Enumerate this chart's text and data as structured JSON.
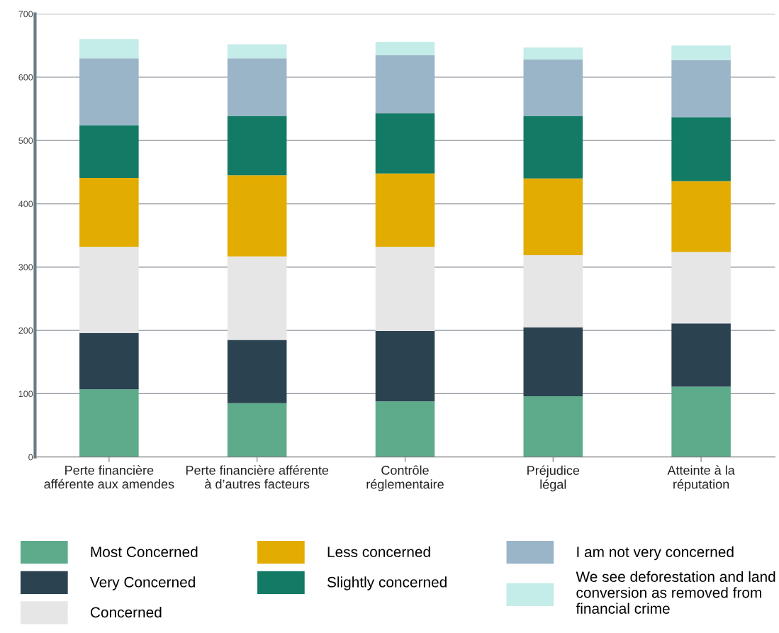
{
  "chart_data": {
    "type": "bar",
    "stacked": true,
    "categories": [
      "Perte financière\nafférente aux amendes",
      "Perte financière afférente\nà d’autres facteurs",
      "Contrôle\nréglementaire",
      "Préjudice\nlégal",
      "Atteinte à la\nréputation"
    ],
    "series": [
      {
        "name": "Most Concerned",
        "color": "#5dab8a",
        "values": [
          107,
          85,
          88,
          96,
          111
        ]
      },
      {
        "name": "Very Concerned",
        "color": "#2b4251",
        "values": [
          89,
          100,
          111,
          109,
          100
        ]
      },
      {
        "name": "Concerned",
        "color": "#e6e6e6",
        "values": [
          136,
          132,
          133,
          114,
          113
        ]
      },
      {
        "name": "Less concerned",
        "color": "#e3ac00",
        "values": [
          109,
          128,
          116,
          121,
          112
        ]
      },
      {
        "name": "Slightly concerned",
        "color": "#137a65",
        "values": [
          83,
          94,
          95,
          99,
          101
        ]
      },
      {
        "name": "I am not very concerned",
        "color": "#9ab5c8",
        "values": [
          106,
          91,
          92,
          89,
          90
        ]
      },
      {
        "name": "We see deforestation and land\nconversion as removed from\nfinancial crime",
        "color": "#c4ece8",
        "values": [
          30,
          22,
          21,
          19,
          23
        ]
      }
    ],
    "ylim": [
      0,
      700
    ],
    "yticks": [
      0,
      100,
      200,
      300,
      400,
      500,
      600,
      700
    ],
    "grid": "y",
    "legend": "bottom"
  }
}
